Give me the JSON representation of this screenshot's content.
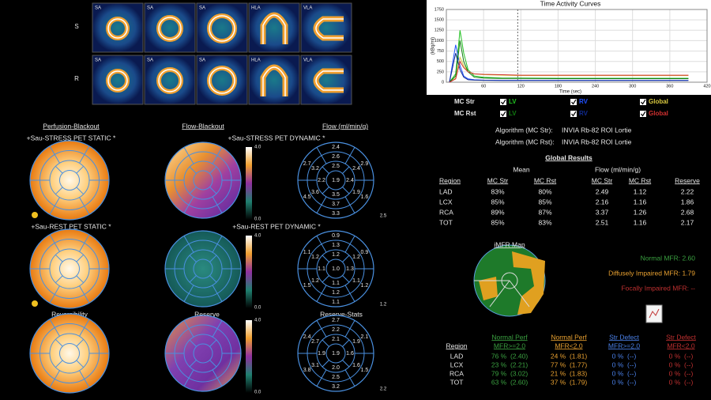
{
  "images": {
    "rows": [
      {
        "label": "S",
        "views": [
          "SA",
          "SA",
          "SA",
          "HLA",
          "VLA"
        ]
      },
      {
        "label": "R",
        "views": [
          "SA",
          "SA",
          "SA",
          "HLA",
          "VLA"
        ]
      }
    ]
  },
  "polar": {
    "headers": [
      "Perfusion-Blackout",
      "Flow-Blackout",
      "Flow (ml/min/g)"
    ],
    "rows": [
      {
        "perfusion_title": "+Sau-STRESS PET STATIC *",
        "flow_title": "+Sau-STRESS PET DYNAMIC *",
        "scale_max": "4.0",
        "scale_min": "0.0",
        "flow": {
          "basal": [
            "2.4",
            "2.9",
            "1.6",
            "3.3",
            "4.5",
            "2.7"
          ],
          "mid": [
            "2.6",
            "2.4",
            "1.9",
            "3.7",
            "3.6",
            "3.2"
          ],
          "apical": [
            "2.5",
            "2.4",
            "3.5",
            "2.2"
          ],
          "apex": "1.9",
          "corner": "2.5"
        }
      },
      {
        "perfusion_title": "+Sau-REST PET STATIC *",
        "flow_title": "+Sau-REST PET DYNAMIC *",
        "scale_max": "4.0",
        "scale_min": "0.0",
        "flow": {
          "basal": [
            "0.9",
            "0.9",
            "1.2",
            "1.1",
            "1.5",
            "1.1"
          ],
          "mid": [
            "1.3",
            "1.2",
            "1.1",
            "1.2",
            "1.2",
            "1.2"
          ],
          "apical": [
            "1.2",
            "1.3",
            "1.1",
            "1.1"
          ],
          "apex": "1.0",
          "corner": "1.2"
        }
      },
      {
        "perfusion_title": "Reversibility",
        "flow_title": "Reserve",
        "stats_title": "Reserve-Stats",
        "scale_max": "4.0",
        "scale_min": "0.0",
        "flow": {
          "basal": [
            "2.7",
            "2.1",
            "1.5",
            "3.2",
            "3.8",
            "2.4"
          ],
          "mid": [
            "2.2",
            "1.9",
            "1.6",
            "2.5",
            "3.1",
            "2.7"
          ],
          "apical": [
            "2.1",
            "1.6",
            "2.0",
            "1.9"
          ],
          "apex": "1.9",
          "corner": "2.2"
        }
      }
    ]
  },
  "chart_data": {
    "type": "line",
    "title": "Time Activity Curves",
    "x_label": "Time (sec)",
    "y_label": "(kBq/ml)",
    "x": [
      5,
      15,
      22,
      28,
      35,
      45,
      60,
      90,
      120,
      180,
      240,
      300,
      360,
      390
    ],
    "xlim": [
      0,
      420
    ],
    "xticks": [
      60,
      120,
      180,
      240,
      300,
      360,
      420
    ],
    "ylim": [
      0,
      1750
    ],
    "yticks": [
      0,
      250,
      500,
      750,
      1000,
      1250,
      1500,
      1750
    ],
    "grid": true,
    "cursor_x": 115,
    "legend_rows": [
      "MC Str",
      "MC Rst"
    ],
    "series": [
      {
        "name": "LV",
        "color": "#20c020",
        "values": [
          0,
          200,
          1250,
          700,
          300,
          150,
          120,
          100,
          100,
          95,
          95,
          95,
          95,
          95
        ]
      },
      {
        "name": "RV",
        "color": "#2050ff",
        "values": [
          0,
          900,
          400,
          150,
          80,
          60,
          50,
          45,
          45,
          45,
          45,
          45,
          45,
          45
        ]
      },
      {
        "name": "Global",
        "color": "#d8c840",
        "values": [
          0,
          100,
          600,
          400,
          250,
          200,
          180,
          170,
          160,
          160,
          160,
          160,
          160,
          160
        ]
      },
      {
        "name": "LV",
        "color": "#107a10",
        "values": [
          0,
          150,
          1000,
          500,
          250,
          120,
          100,
          90,
          90,
          85,
          85,
          85,
          85,
          85
        ]
      },
      {
        "name": "RV",
        "color": "#102a90",
        "values": [
          0,
          700,
          300,
          120,
          60,
          50,
          45,
          40,
          40,
          40,
          40,
          40,
          40,
          40
        ]
      },
      {
        "name": "Global",
        "color": "#d03030",
        "values": [
          0,
          80,
          500,
          350,
          250,
          200,
          190,
          180,
          170,
          170,
          170,
          170,
          170,
          170
        ]
      }
    ]
  },
  "algorithms": [
    {
      "label": "Algorithm (MC Str):",
      "value": "INVIA Rb-82 ROI Lortie"
    },
    {
      "label": "Algorithm (MC Rst):",
      "value": "INVIA Rb-82 ROI Lortie"
    }
  ],
  "global_results": {
    "title": "Global Results",
    "groups": [
      "Mean",
      "Flow (ml/min/g)"
    ],
    "columns": [
      "Region",
      "MC Str",
      "MC Rst",
      "MC Str",
      "MC Rst",
      "Reserve"
    ],
    "rows": [
      [
        "LAD",
        "83%",
        "80%",
        "2.49",
        "1.12",
        "2.22"
      ],
      [
        "LCX",
        "85%",
        "85%",
        "2.16",
        "1.16",
        "1.86"
      ],
      [
        "RCA",
        "89%",
        "87%",
        "3.37",
        "1.26",
        "2.68"
      ],
      [
        "TOT",
        "85%",
        "83%",
        "2.51",
        "1.16",
        "2.17"
      ]
    ]
  },
  "imfr": {
    "title": "iMFR Map",
    "legend": [
      "Normal MFR: 2.60",
      "Diffusely Impaired MFR: 1.79",
      "Focally Impaired MFR: --"
    ],
    "table": {
      "region_header": "Region",
      "header_top": [
        "Normal Perf",
        "Normal Perf",
        "Str Defect",
        "Str Defect"
      ],
      "header_bottom": [
        "MFR>=2.0",
        "MFR<2.0",
        "MFR>=2.0",
        "MFR<2.0"
      ],
      "rows": [
        [
          "LAD",
          "76 %  (2.40)",
          "24 %  (1.81)",
          "0 %  (--)",
          "0 %  (--)"
        ],
        [
          "LCX",
          "23 %  (2.21)",
          "77 %  (1.77)",
          "0 %  (--)",
          "0 %  (--)"
        ],
        [
          "RCA",
          "79 %  (3.02)",
          "21 %  (1.83)",
          "0 %  (--)",
          "0 %  (--)"
        ],
        [
          "TOT",
          "63 %  (2.60)",
          "37 %  (1.79)",
          "0 %  (--)",
          "0 %  (--)"
        ]
      ]
    }
  }
}
